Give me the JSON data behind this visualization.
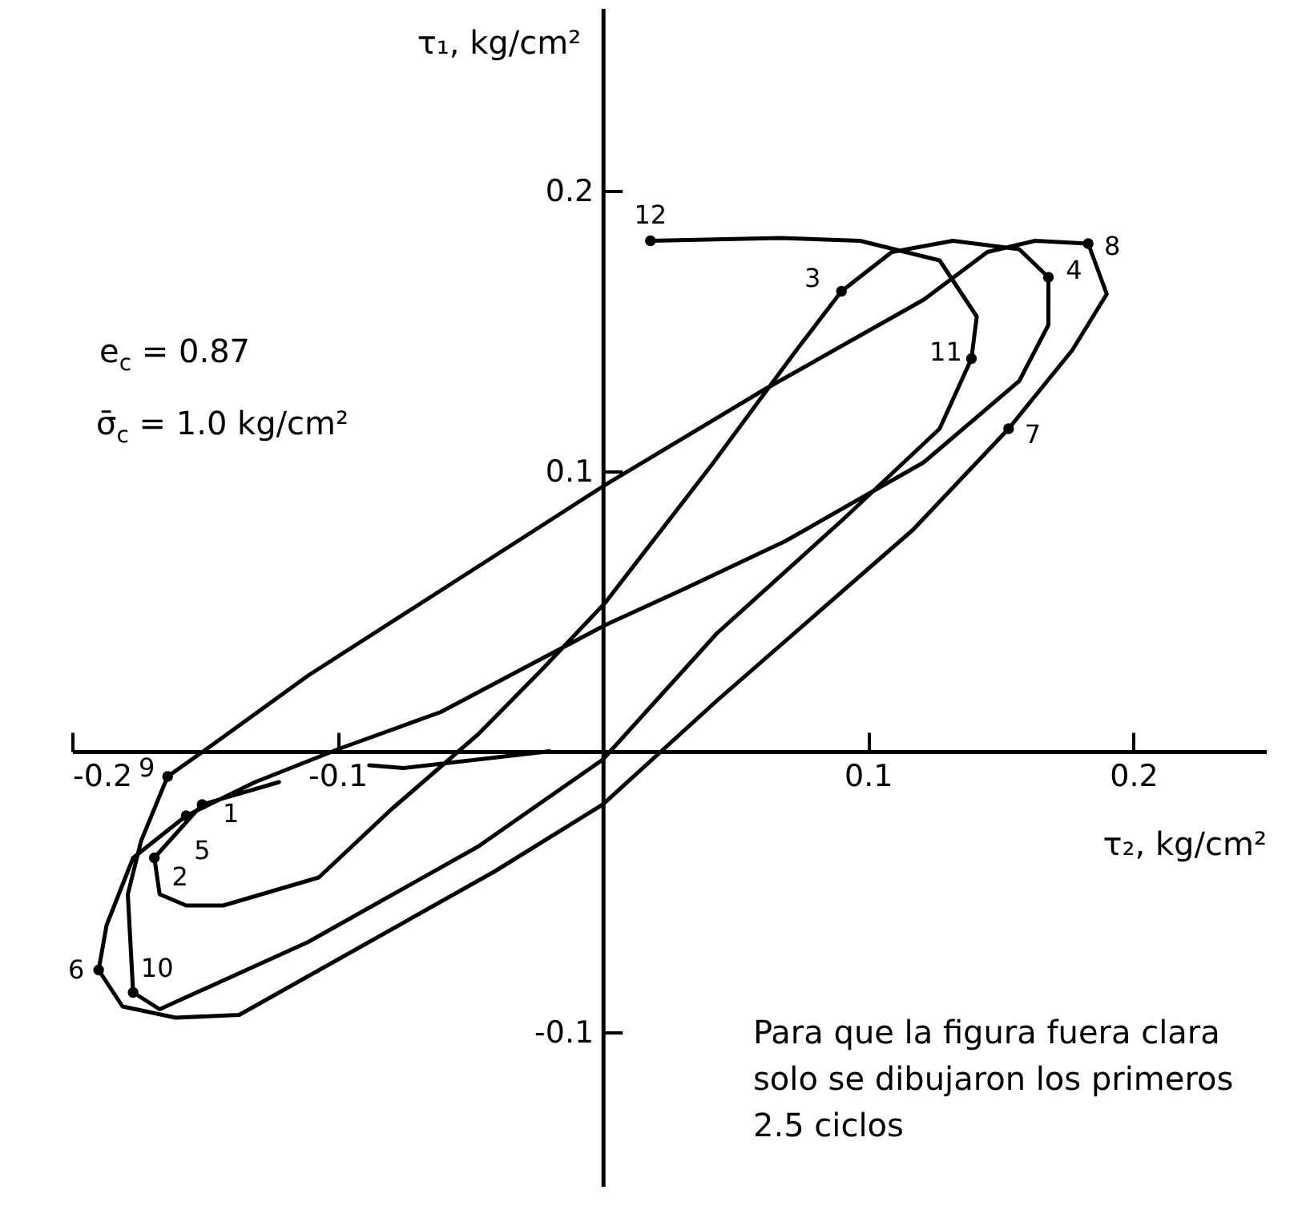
{
  "chart_data": {
    "type": "line",
    "xlabel": "τ₂, kg/cm²",
    "ylabel": "τ₁, kg/cm²",
    "xlim": [
      -0.2,
      0.25
    ],
    "ylim": [
      -0.155,
      0.265
    ],
    "xticks": [
      {
        "value": -0.2,
        "label": "-0.2"
      },
      {
        "value": -0.1,
        "label": "-0.1"
      },
      0.1,
      0.2
    ],
    "yticks": [
      {
        "value": -0.1,
        "label": "-0.1"
      },
      0.1,
      0.2
    ],
    "line_style": "solid",
    "series": [
      {
        "color": "#000000",
        "x": [
          -0.02,
          -0.075,
          -0.088,
          -0.1,
          -0.122,
          -0.151,
          -0.169,
          -0.167,
          -0.157,
          -0.143,
          -0.107,
          -0.08,
          -0.047,
          -0.023,
          0.001,
          0.041,
          0.073,
          0.09,
          0.109,
          0.132,
          0.157,
          0.168,
          0.168,
          0.157,
          0.121,
          0.069,
          0.031,
          0.001,
          -0.061,
          -0.099,
          -0.131,
          -0.157,
          -0.177,
          -0.187,
          -0.19,
          -0.181,
          -0.161,
          -0.137,
          -0.041,
          0.0,
          0.043,
          0.117,
          0.153,
          0.177,
          0.19,
          0.183,
          0.163,
          0.145,
          0.121,
          0.061,
          0.001,
          -0.111,
          -0.149,
          -0.164,
          -0.174,
          -0.179,
          -0.177,
          -0.167,
          -0.111,
          -0.047,
          0.0,
          0.043,
          0.091,
          0.127,
          0.139,
          0.141,
          0.127,
          0.097,
          0.067,
          0.018
        ],
        "values": [
          0.0,
          -0.006,
          -0.005,
          null,
          -0.011,
          -0.019,
          -0.038,
          -0.051,
          -0.055,
          -0.055,
          -0.045,
          -0.021,
          0.006,
          0.029,
          0.053,
          0.102,
          0.143,
          0.164,
          0.178,
          0.182,
          0.179,
          0.169,
          0.152,
          0.132,
          0.103,
          0.075,
          0.058,
          0.045,
          0.014,
          0.001,
          -0.011,
          -0.023,
          -0.038,
          -0.062,
          -0.078,
          -0.091,
          -0.095,
          -0.094,
          -0.043,
          -0.019,
          0.018,
          0.079,
          0.115,
          0.143,
          0.163,
          0.181,
          0.182,
          0.178,
          0.161,
          0.129,
          0.095,
          0.027,
          0.001,
          -0.009,
          -0.032,
          -0.051,
          -0.086,
          -0.092,
          -0.068,
          -0.034,
          -0.003,
          0.042,
          0.083,
          0.115,
          0.14,
          0.155,
          0.175,
          0.182,
          0.183,
          0.182
        ]
      }
    ],
    "annotations": [
      "e$_{c}$ = 0.87",
      "σ̄$_{c}$ = 1.0 kg/cm²",
      "Para que la figura fuera clara solo se dibujaron los primeros 2.5 ciclos",
      {
        "text": "10",
        "x": -0.177,
        "y": -0.086
      },
      {
        "text": "11",
        "x": 0.139,
        "y": 0.14
      },
      {
        "text": "12",
        "x": 0.018,
        "y": 0.182
      },
      {
        "text": "1",
        "x": -0.151,
        "y": -0.019
      },
      {
        "text": "2",
        "x": -0.169,
        "y": -0.038
      },
      {
        "text": "3",
        "x": 0.09,
        "y": 0.164
      },
      {
        "text": "4",
        "x": 0.168,
        "y": 0.169
      },
      {
        "text": "5",
        "x": -0.157,
        "y": -0.023
      },
      {
        "text": "6",
        "x": -0.19,
        "y": -0.078
      },
      {
        "text": "7",
        "x": 0.153,
        "y": 0.115
      },
      {
        "text": "8",
        "x": 0.183,
        "y": 0.181
      },
      {
        "text": "9",
        "x": -0.164,
        "y": -0.009
      }
    ]
  }
}
